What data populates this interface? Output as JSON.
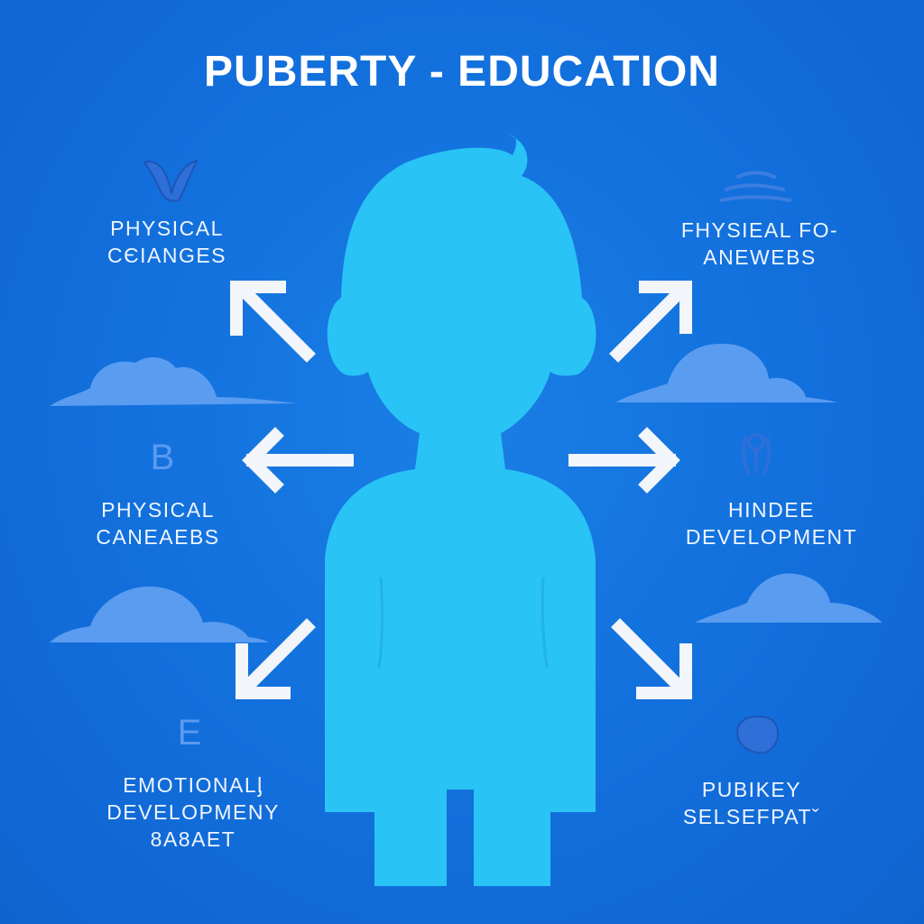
{
  "title": "PUBERTY - EDUCATION",
  "topics": {
    "top_left": [
      "PHYSICAL",
      "CЄIANGES"
    ],
    "top_right": [
      "FHYSIEAL FO-",
      "ANEWEBS"
    ],
    "mid_left": [
      "PHYSICAL",
      "CANEAEBS"
    ],
    "mid_right": [
      "HINDEE",
      "DEVELOPMENT"
    ],
    "bottom_left": [
      "EMOTIONALᶅ",
      "DEVELOPMENY",
      "8A8AET"
    ],
    "bottom_right": [
      "PUBIKEY",
      "SELSEFPATˇ"
    ]
  },
  "letters": {
    "mid_left": "B",
    "bottom_left": "E"
  },
  "icons": [
    "bird-icon",
    "wave-icon",
    "figure-icon",
    "circle-icon"
  ],
  "colors": {
    "background": "#126fdc",
    "silhouette": "#29c3f5",
    "cloud": "#5a9cf0",
    "arrow": "#f2f5fa",
    "text": "#eef5ff"
  }
}
